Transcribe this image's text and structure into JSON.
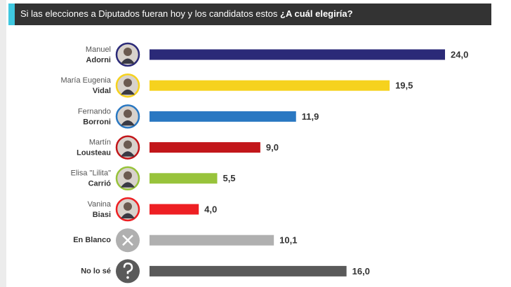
{
  "chart_data": {
    "type": "bar",
    "title": "Si las elecciones a Diputados fueran hoy y los candidatos estos",
    "title_emphasis": "¿A cuál elegiría?",
    "first_names": [
      "Manuel",
      "María Eugenia",
      "Fernando",
      "Martín",
      "Elisa \"Lilita\"",
      "Vanina",
      null,
      null
    ],
    "categories": [
      "Adorni",
      "Vidal",
      "Borroni",
      "Lousteau",
      "Carrió",
      "Biasi",
      "En Blanco",
      "No lo sé"
    ],
    "values": [
      24.0,
      19.5,
      11.9,
      9.0,
      5.5,
      4.0,
      10.1,
      16.0
    ],
    "value_labels": [
      "24,0",
      "19,5",
      "11,9",
      "9,0",
      "5,5",
      "4,0",
      "10,1",
      "16,0"
    ],
    "colors": [
      "#2b2a78",
      "#f6d21e",
      "#2a78c2",
      "#c2161a",
      "#98c33b",
      "#ee1f23",
      "#b0b0b0",
      "#5a5a5a"
    ]
  }
}
